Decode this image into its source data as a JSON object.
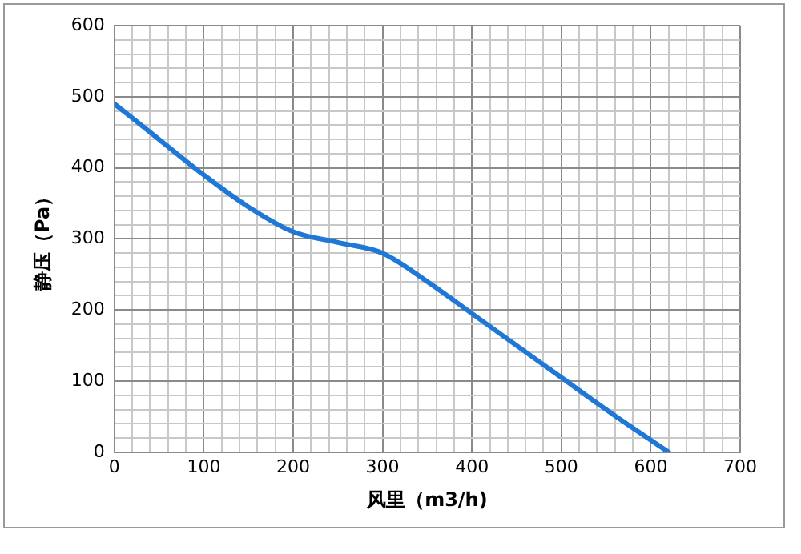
{
  "chart_data": {
    "type": "line",
    "xlabel": "风里（m3/h)",
    "ylabel": "静压（Pa）",
    "x": [
      0,
      50,
      100,
      150,
      200,
      250,
      300,
      350,
      400,
      450,
      500,
      550,
      600,
      620
    ],
    "series": [
      {
        "color": "#1f78d6",
        "values": [
          490,
          440,
          390,
          345,
          310,
          295,
          280,
          240,
          195,
          150,
          105,
          60,
          17,
          0
        ]
      }
    ],
    "xlim": [
      0,
      700
    ],
    "ylim": [
      0,
      600
    ],
    "xticks": [
      0,
      {
        "value": 20,
        "label": null
      },
      {
        "value": 40,
        "label": null
      },
      {
        "value": 60,
        "label": null
      },
      {
        "value": 80,
        "label": null
      },
      100,
      {
        "value": 120,
        "label": null
      },
      {
        "value": 140,
        "label": null
      },
      {
        "value": 160,
        "label": null
      },
      {
        "value": 180,
        "label": null
      },
      200,
      {
        "value": 220,
        "label": null
      },
      {
        "value": 240,
        "label": null
      },
      {
        "value": 260,
        "label": null
      },
      {
        "value": 280,
        "label": null
      },
      300,
      {
        "value": 320,
        "label": null
      },
      {
        "value": 340,
        "label": null
      },
      {
        "value": 360,
        "label": null
      },
      {
        "value": 380,
        "label": null
      },
      400,
      {
        "value": 420,
        "label": null
      },
      {
        "value": 440,
        "label": null
      },
      {
        "value": 460,
        "label": null
      },
      {
        "value": 480,
        "label": null
      },
      500,
      {
        "value": 520,
        "label": null
      },
      {
        "value": 540,
        "label": null
      },
      {
        "value": 560,
        "label": null
      },
      {
        "value": 580,
        "label": null
      },
      600,
      {
        "value": 620,
        "label": null
      },
      {
        "value": 640,
        "label": null
      },
      {
        "value": 660,
        "label": null
      },
      {
        "value": 680,
        "label": null
      },
      700
    ],
    "yticks": [
      0,
      {
        "value": 20,
        "label": null
      },
      {
        "value": 40,
        "label": null
      },
      {
        "value": 60,
        "label": null
      },
      {
        "value": 80,
        "label": null
      },
      100,
      {
        "value": 120,
        "label": null
      },
      {
        "value": 140,
        "label": null
      },
      {
        "value": 160,
        "label": null
      },
      {
        "value": 180,
        "label": null
      },
      200,
      {
        "value": 220,
        "label": null
      },
      {
        "value": 240,
        "label": null
      },
      {
        "value": 260,
        "label": null
      },
      {
        "value": 280,
        "label": null
      },
      300,
      {
        "value": 320,
        "label": null
      },
      {
        "value": 340,
        "label": null
      },
      {
        "value": 360,
        "label": null
      },
      {
        "value": 380,
        "label": null
      },
      400,
      {
        "value": 420,
        "label": null
      },
      {
        "value": 440,
        "label": null
      },
      {
        "value": 460,
        "label": null
      },
      {
        "value": 480,
        "label": null
      },
      500,
      {
        "value": 520,
        "label": null
      },
      {
        "value": 540,
        "label": null
      },
      {
        "value": 560,
        "label": null
      },
      {
        "value": 580,
        "label": null
      },
      600
    ],
    "grid": true,
    "legend": false,
    "marker": "none",
    "line_style": "solid"
  }
}
